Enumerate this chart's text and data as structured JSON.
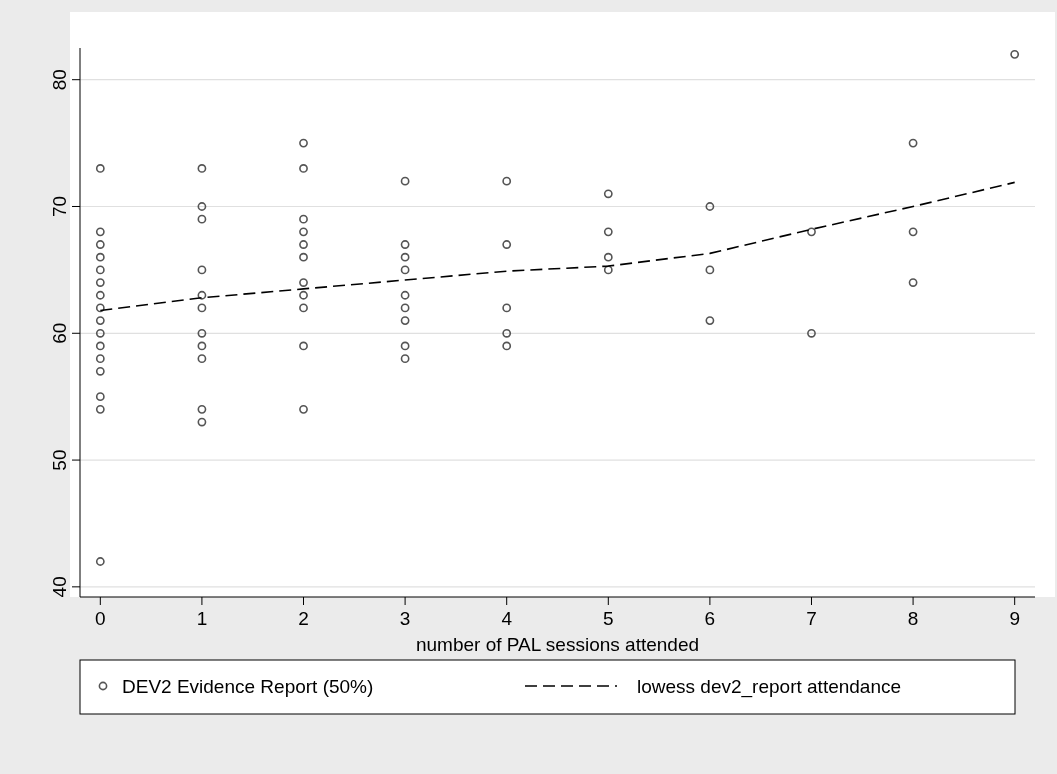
{
  "chart_data": {
    "type": "scatter",
    "xlabel": "number of PAL sessions attended",
    "xlim": [
      -0.2,
      9.2
    ],
    "ylim": [
      39.2,
      82.5
    ],
    "xticks": [
      0,
      1,
      2,
      3,
      4,
      5,
      6,
      7,
      8,
      9
    ],
    "yticks": [
      40,
      50,
      60,
      70,
      80
    ],
    "grid": "y",
    "legend": "bottom",
    "series": [
      {
        "name": "DEV2 Evidence Report (50%)",
        "marker": "circle",
        "color": "#555555",
        "x": [
          0,
          0,
          0,
          0,
          0,
          0,
          0,
          0,
          0,
          0,
          0,
          0,
          0,
          0,
          0,
          0,
          1,
          1,
          1,
          1,
          1,
          1,
          1,
          1,
          1,
          1,
          1,
          2,
          2,
          2,
          2,
          2,
          2,
          2,
          2,
          2,
          2,
          2,
          3,
          3,
          3,
          3,
          3,
          3,
          3,
          3,
          3,
          4,
          4,
          4,
          4,
          4,
          5,
          5,
          5,
          5,
          6,
          6,
          6,
          7,
          7,
          8,
          8,
          8,
          9
        ],
        "values": [
          73,
          68,
          67,
          66,
          65,
          64,
          63,
          62,
          61,
          60,
          59,
          58,
          57,
          55,
          54,
          42,
          73,
          70,
          69,
          65,
          63,
          62,
          60,
          59,
          58,
          54,
          53,
          75,
          73,
          69,
          68,
          67,
          66,
          64,
          63,
          62,
          59,
          54,
          72,
          67,
          66,
          65,
          63,
          62,
          61,
          59,
          58,
          72,
          67,
          62,
          60,
          59,
          71,
          68,
          66,
          65,
          70,
          65,
          61,
          68,
          60,
          75,
          68,
          64,
          82
        ]
      },
      {
        "name": "lowess dev2_report attendance",
        "type": "line",
        "line_style": "dashed",
        "marker": "none",
        "color": "#000000",
        "x": [
          0,
          1,
          2,
          3,
          4,
          5,
          6,
          7,
          8,
          9
        ],
        "values": [
          61.8,
          62.8,
          63.5,
          64.2,
          64.9,
          65.3,
          66.3,
          68.2,
          70.0,
          71.9
        ]
      }
    ]
  }
}
